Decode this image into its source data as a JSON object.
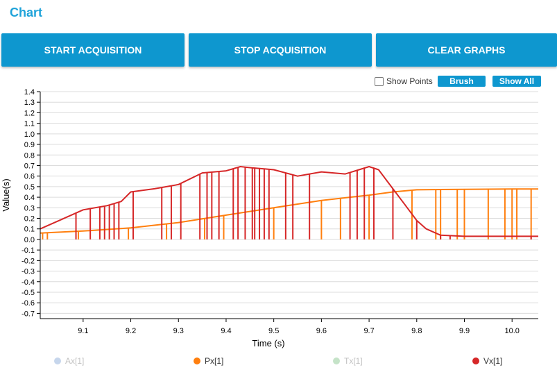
{
  "header": {
    "title": "Chart"
  },
  "buttons": {
    "start": "START ACQUISITION",
    "stop": "STOP ACQUISITION",
    "clear": "CLEAR GRAPHS"
  },
  "toolbar": {
    "show_points": "Show Points",
    "brush": "Brush",
    "show_all": "Show All"
  },
  "colors": {
    "accent": "#0e97cf",
    "title": "#1fa3d9",
    "Ax": "#c6d6ec",
    "Px": "#ff7f0e",
    "Tx": "#c5e3c8",
    "Vx": "#d62728"
  },
  "chart_data": {
    "type": "line",
    "xlabel": "Time (s)",
    "ylabel": "Value(s)",
    "xlim": [
      9.01,
      10.055
    ],
    "ylim": [
      -0.75,
      1.4
    ],
    "x_ticks": [
      "9.1",
      "9.2",
      "9.3",
      "9.4",
      "9.5",
      "9.6",
      "9.7",
      "9.8",
      "9.9",
      "10.0"
    ],
    "y_ticks": [
      "1.4",
      "1.3",
      "1.2",
      "1.1",
      "1.0",
      "0.9",
      "0.8",
      "0.7",
      "0.6",
      "0.5",
      "0.4",
      "0.3",
      "0.2",
      "0.1",
      "0.0",
      "-0.1",
      "-0.2",
      "-0.3",
      "-0.4",
      "-0.5",
      "-0.6",
      "-0.7"
    ],
    "grid": true,
    "legend_position": "bottom",
    "series": [
      {
        "name": "Ax[1]",
        "color": "#c6d6ec",
        "hidden": true,
        "x": [],
        "y": []
      },
      {
        "name": "Px[1]",
        "color": "#ff7f0e",
        "x": [
          9.01,
          9.1,
          9.2,
          9.3,
          9.4,
          9.5,
          9.6,
          9.7,
          9.75,
          9.8,
          9.9,
          10.0,
          10.055
        ],
        "y": [
          0.06,
          0.08,
          0.11,
          0.16,
          0.23,
          0.3,
          0.37,
          0.42,
          0.45,
          0.47,
          0.475,
          0.478,
          0.478
        ],
        "dropouts": [
          9.015,
          9.025,
          9.09,
          9.195,
          9.275,
          9.355,
          9.395,
          9.5,
          9.6,
          9.64,
          9.7,
          9.79,
          9.84,
          9.85,
          9.885,
          9.9,
          9.95,
          9.985,
          10.0,
          10.01,
          10.04
        ]
      },
      {
        "name": "Tx[1]",
        "color": "#c5e3c8",
        "hidden": true,
        "x": [],
        "y": []
      },
      {
        "name": "Vx[1]",
        "color": "#d62728",
        "x": [
          9.01,
          9.05,
          9.1,
          9.15,
          9.18,
          9.2,
          9.25,
          9.3,
          9.35,
          9.4,
          9.43,
          9.45,
          9.5,
          9.55,
          9.6,
          9.65,
          9.7,
          9.72,
          9.75,
          9.78,
          9.8,
          9.82,
          9.85,
          9.9,
          10.0,
          10.055
        ],
        "y": [
          0.1,
          0.18,
          0.28,
          0.32,
          0.36,
          0.45,
          0.48,
          0.52,
          0.63,
          0.65,
          0.69,
          0.68,
          0.66,
          0.6,
          0.64,
          0.62,
          0.69,
          0.66,
          0.48,
          0.3,
          0.18,
          0.1,
          0.04,
          0.03,
          0.03,
          0.03
        ],
        "dropouts": [
          9.085,
          9.115,
          9.135,
          9.145,
          9.155,
          9.165,
          9.175,
          9.205,
          9.265,
          9.285,
          9.305,
          9.345,
          9.36,
          9.37,
          9.385,
          9.415,
          9.425,
          9.44,
          9.455,
          9.46,
          9.47,
          9.48,
          9.49,
          9.525,
          9.54,
          9.575,
          9.66,
          9.675,
          9.69,
          9.71,
          9.75,
          9.8,
          9.85,
          9.87,
          10.04
        ]
      }
    ]
  }
}
